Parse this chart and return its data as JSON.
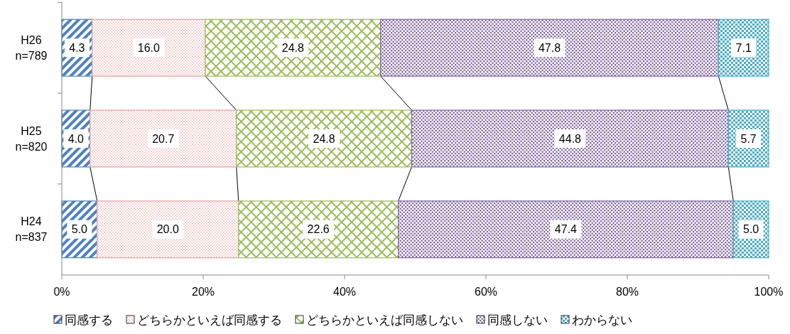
{
  "chart_data": {
    "type": "bar",
    "orientation": "horizontal",
    "stacked": true,
    "categories": [
      "H26\nn=789",
      "H25\nn=820",
      "H24\nn=837"
    ],
    "series": [
      {
        "name": "同感する",
        "color": "#4f81bd",
        "values": [
          4.3,
          4.0,
          5.0
        ],
        "value_labels": [
          "4.3",
          "4.0",
          "5.0"
        ]
      },
      {
        "name": "どちらかといえば同感する",
        "color": "#e6a0a0",
        "values": [
          16.0,
          20.7,
          20.0
        ],
        "value_labels": [
          "16.0",
          "20.7",
          "20.0"
        ]
      },
      {
        "name": "どちらかといえば同感しない",
        "color": "#9bbb59",
        "values": [
          24.8,
          24.8,
          22.6
        ],
        "value_labels": [
          "24.8",
          "24.8",
          "22.6"
        ]
      },
      {
        "name": "同感しない",
        "color": "#8064a2",
        "values": [
          47.8,
          44.8,
          47.4
        ],
        "value_labels": [
          "47.8",
          "44.8",
          "47.4"
        ]
      },
      {
        "name": "わからない",
        "color": "#4bacc6",
        "values": [
          7.1,
          5.7,
          5.0
        ],
        "value_labels": [
          "7.1",
          "5.7",
          "5.0"
        ]
      }
    ],
    "xlim": [
      0,
      100
    ],
    "xticks": [
      {
        "value": 0,
        "label": "0%"
      },
      {
        "value": 20,
        "label": "20%"
      },
      {
        "value": 40,
        "label": "40%"
      },
      {
        "value": 60,
        "label": "60%"
      },
      {
        "value": 80,
        "label": "80%"
      },
      {
        "value": 100,
        "label": "100%"
      }
    ],
    "legend": "bottom",
    "grid": false
  }
}
